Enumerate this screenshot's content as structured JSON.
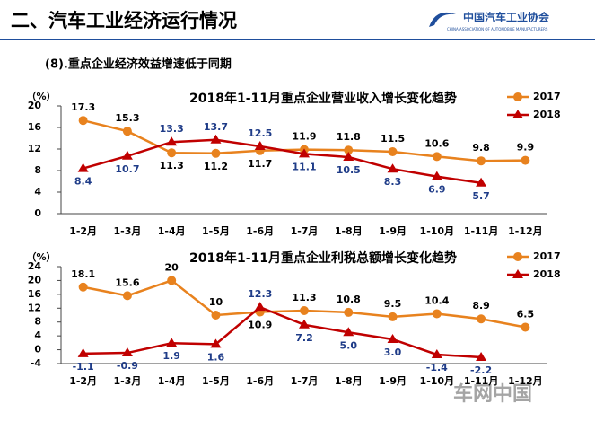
{
  "header": {
    "title": "二、汽车工业经济运行情况",
    "logo_name": "中国汽车工业协会",
    "logo_subtitle": "CHINA ASSOCIATION OF AUTOMOBILE MANUFACTURERS",
    "watermark": "车网中国"
  },
  "subtitle": "(8).重点企业经济效益增速低于同期",
  "chart_data": [
    {
      "type": "line",
      "title": "2018年1-11月重点企业营业收入增长变化趋势",
      "y_unit": "（%）",
      "categories": [
        "1-2月",
        "1-3月",
        "1-4月",
        "1-5月",
        "1-6月",
        "1-7月",
        "1-8月",
        "1-9月",
        "1-10月",
        "1-11月",
        "1-12月"
      ],
      "series": [
        {
          "name": "2017",
          "color": "#e8821e",
          "values": [
            17.3,
            15.3,
            11.3,
            11.2,
            11.7,
            11.9,
            11.8,
            11.5,
            10.6,
            9.8,
            9.9
          ]
        },
        {
          "name": "2018",
          "color": "#c00000",
          "values": [
            8.4,
            10.7,
            13.3,
            13.7,
            12.5,
            11.1,
            10.5,
            8.3,
            6.9,
            5.7,
            null
          ]
        }
      ],
      "ylim": [
        0,
        20
      ],
      "yticks": [
        0,
        4,
        8,
        12,
        16,
        20
      ],
      "legend": "top-right"
    },
    {
      "type": "line",
      "title": "2018年1-11月重点企业利税总额增长变化趋势",
      "y_unit": "（%）",
      "categories": [
        "1-2月",
        "1-3月",
        "1-4月",
        "1-5月",
        "1-6月",
        "1-7月",
        "1-8月",
        "1-9月",
        "1-10月",
        "1-11月",
        "1-12月"
      ],
      "series": [
        {
          "name": "2017",
          "color": "#e8821e",
          "values": [
            18.1,
            15.6,
            20,
            10,
            10.9,
            11.3,
            10.8,
            9.5,
            10.4,
            8.9,
            6.5
          ]
        },
        {
          "name": "2018",
          "color": "#c00000",
          "values": [
            -1.1,
            -0.9,
            1.9,
            1.6,
            12.3,
            7.2,
            5.0,
            3.0,
            -1.4,
            -2.2,
            null
          ],
          "value_labels": [
            "-1.1",
            "-0.9",
            "1.9",
            "1.6",
            "12.3",
            "7.2",
            "5.0",
            "3.0",
            "-1.4",
            "-2.2",
            null
          ]
        }
      ],
      "ylim": [
        -4,
        24
      ],
      "yticks": [
        -4,
        0,
        4,
        8,
        12,
        16,
        20,
        24
      ],
      "legend": "top-right"
    }
  ]
}
